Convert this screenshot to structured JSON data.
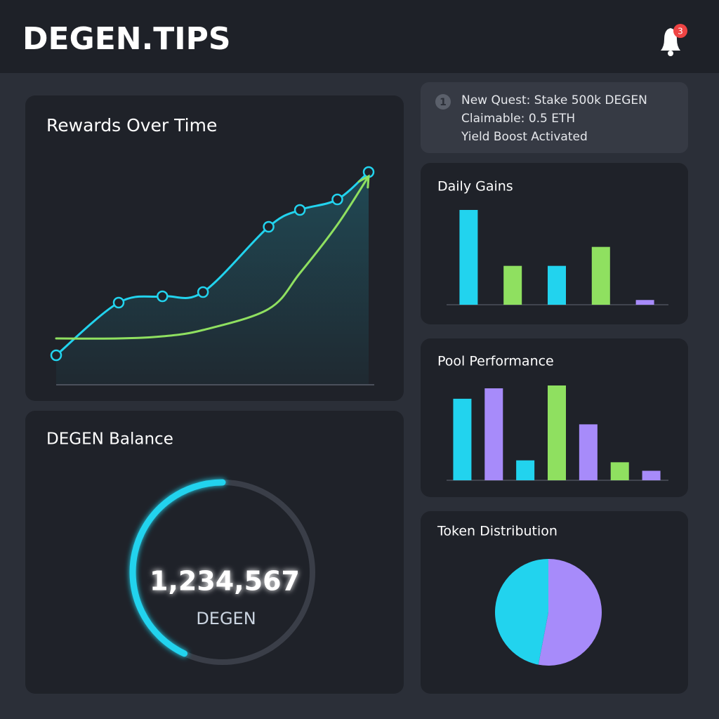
{
  "header": {
    "title": "DEGEN.TIPS",
    "badge": "3"
  },
  "notice": {
    "icon": "1",
    "lines": [
      "New Quest: Stake 500k DEGEN",
      "Claimable: 0.5 ETH",
      "Yield Boost Activated"
    ]
  },
  "balance": {
    "title": "DEGEN Balance",
    "amount": "1,234,567",
    "unit": "DEGEN",
    "progress": 43,
    "color": "#22d3ee",
    "track_color": "#3a3e48"
  },
  "chart_data": [
    {
      "type": "line",
      "title": "Rewards Over Time",
      "x": [
        0,
        20,
        34,
        47,
        68,
        78,
        90,
        100
      ],
      "xlim": [
        0,
        100
      ],
      "ylim": [
        0,
        110
      ],
      "series": [
        {
          "color": "#22d3ee",
          "markers": true,
          "values": [
            14,
            39,
            42,
            44,
            75,
            83,
            88,
            101
          ]
        },
        {
          "color": "#8fe060",
          "markers": false,
          "values": [
            22,
            22,
            23,
            26,
            36,
            53,
            76,
            99
          ]
        }
      ]
    },
    {
      "type": "bar",
      "title": "Daily Gains",
      "ylim": [
        0,
        100
      ],
      "values": [
        100,
        41,
        41,
        61,
        5
      ],
      "colors": [
        "#22d3ee",
        "#8fe060",
        "#22d3ee",
        "#8fe060",
        "#a78bfa"
      ]
    },
    {
      "type": "bar",
      "title": "Pool Performance",
      "ylim": [
        0,
        100
      ],
      "values": [
        86,
        97,
        21,
        100,
        59,
        19,
        10
      ],
      "colors": [
        "#22d3ee",
        "#a78bfa",
        "#22d3ee",
        "#8fe060",
        "#a78bfa",
        "#8fe060",
        "#a78bfa"
      ]
    },
    {
      "type": "pie",
      "title": "Token Distribution",
      "values": [
        53,
        47
      ],
      "colors": [
        "#a78bfa",
        "#22d3ee"
      ]
    }
  ]
}
